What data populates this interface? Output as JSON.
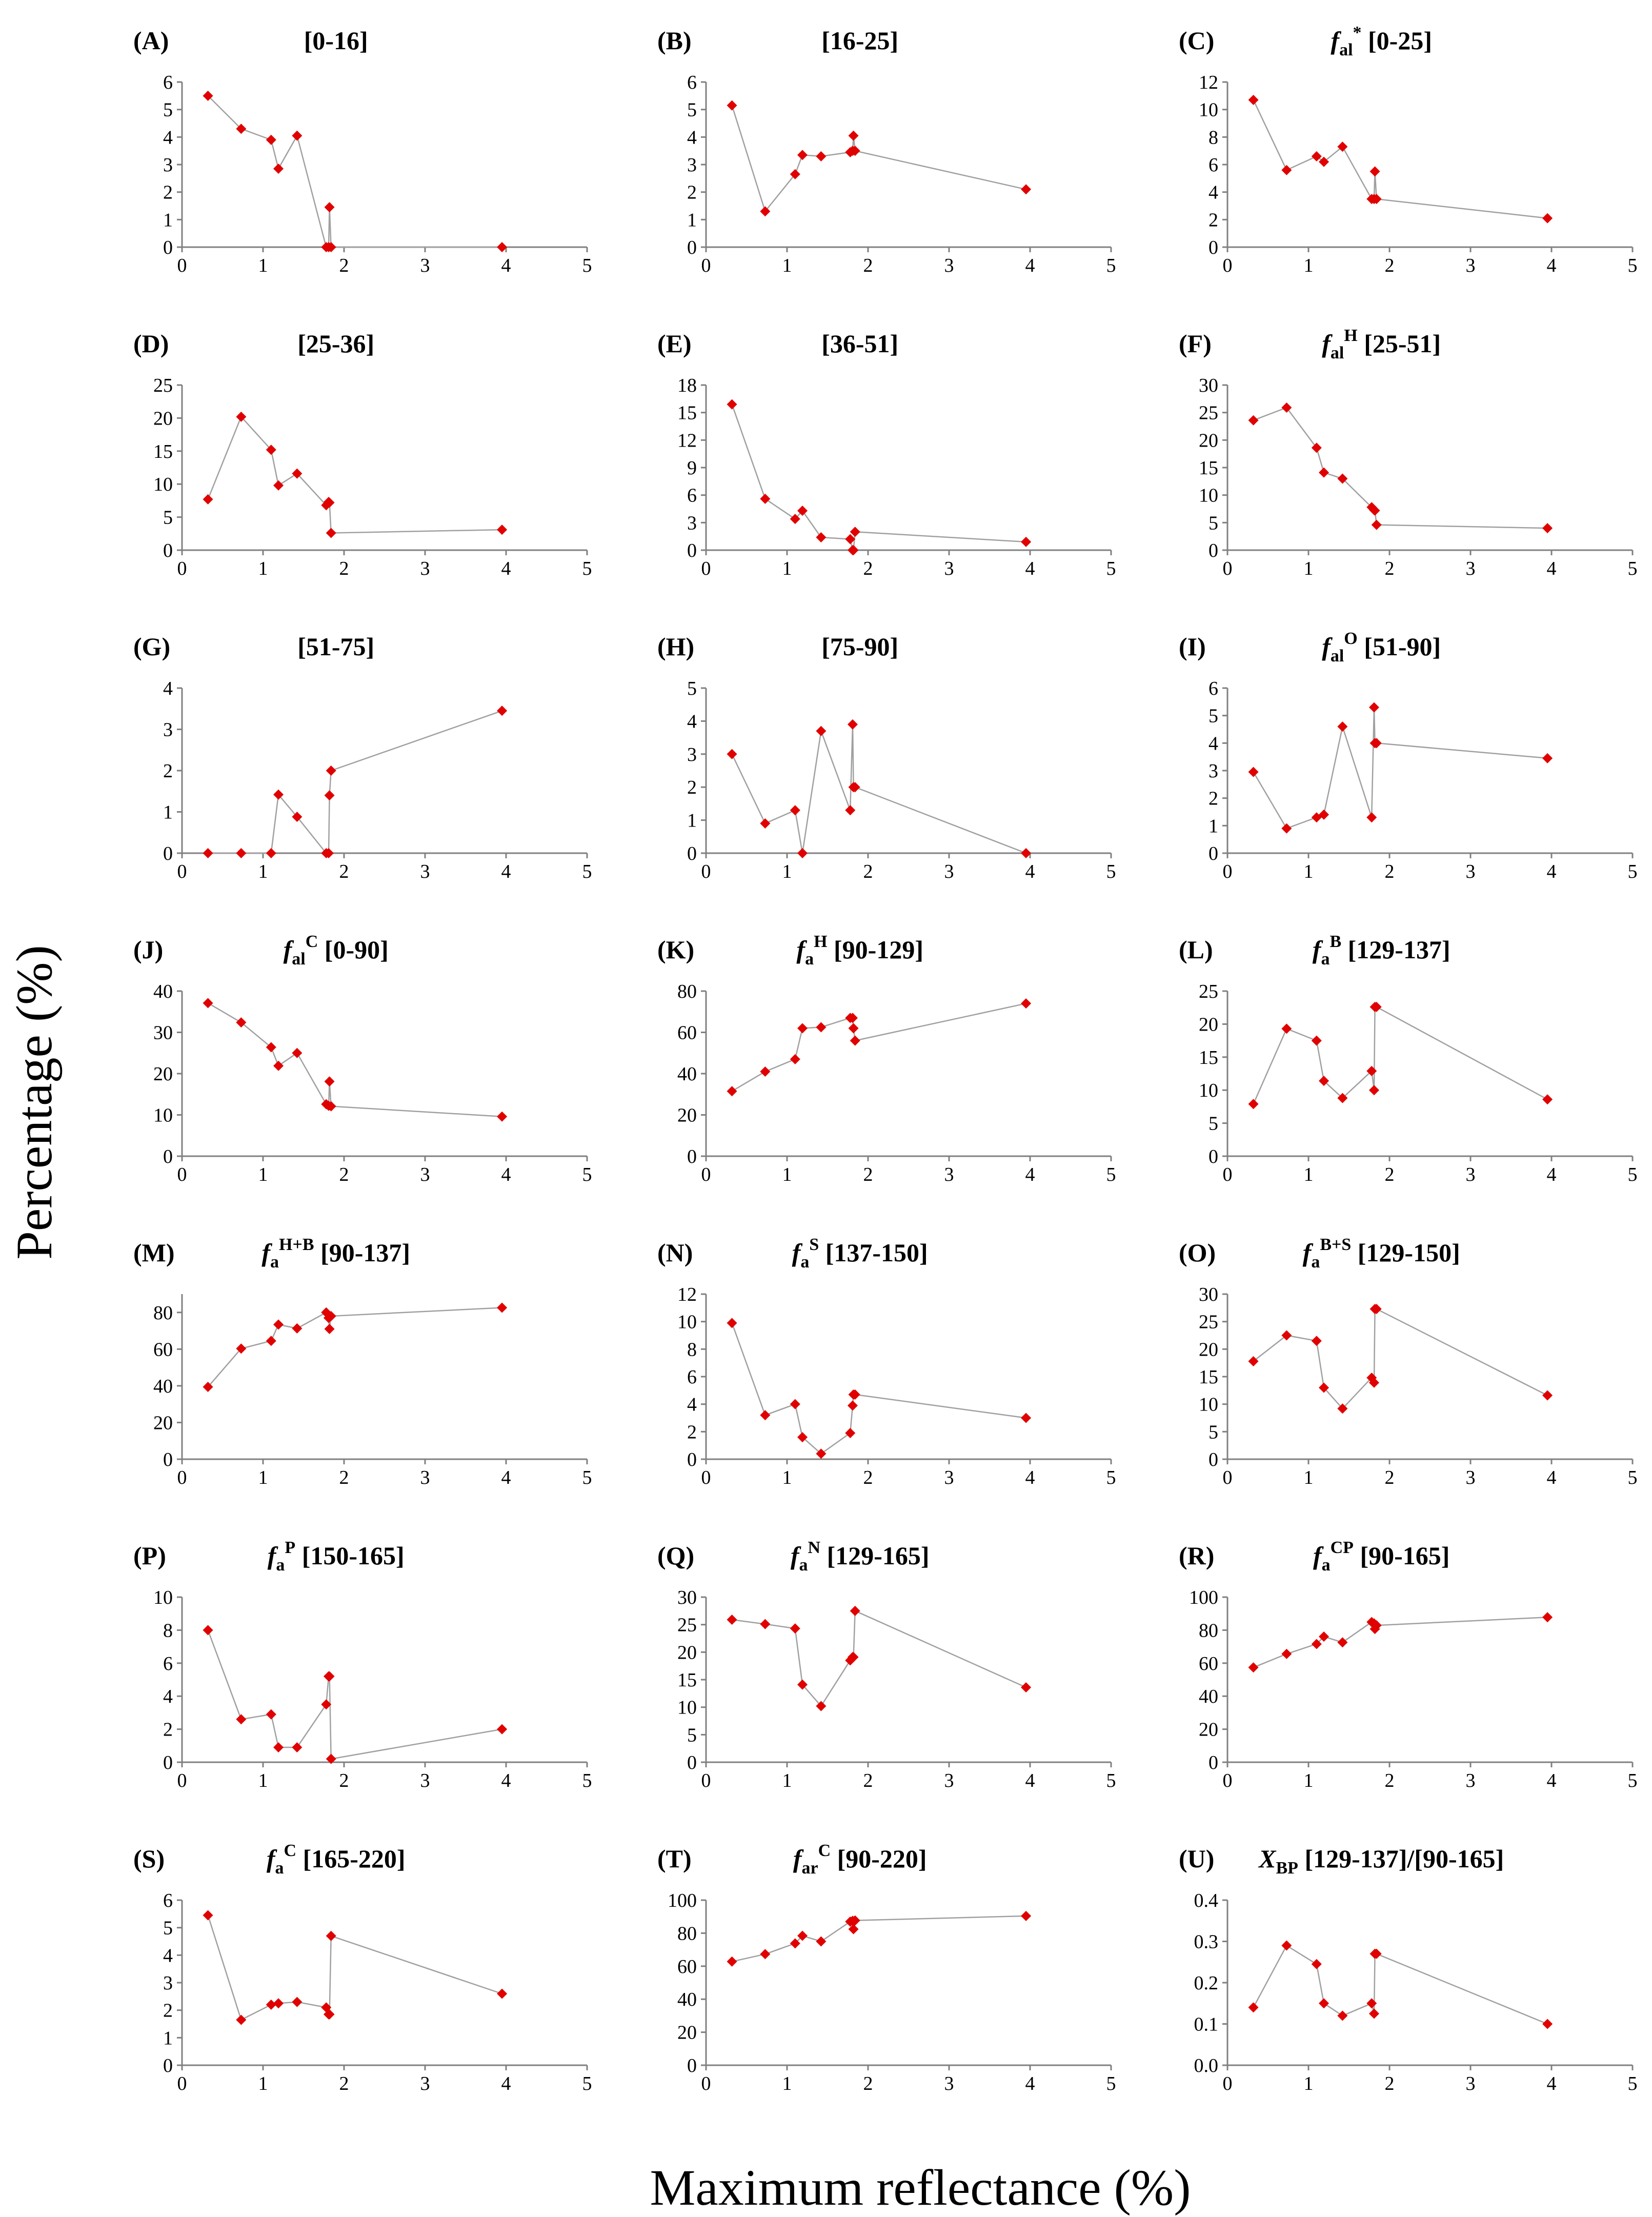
{
  "figure": {
    "ylabel": "Percentage (%)",
    "xlabel": "Maximum reflectance (%)"
  },
  "style": {
    "marker_color": "#e00000",
    "line_color": "#a0a0a0",
    "axis_color": "#808080"
  },
  "chart_data": [
    {
      "id": "A",
      "letter": "(A)",
      "title": "[0-16]",
      "type": "line",
      "xlim": [
        0,
        5
      ],
      "xticks": [
        0,
        1,
        2,
        3,
        4,
        5
      ],
      "ylim": [
        0,
        6
      ],
      "yticks": [
        0,
        1,
        2,
        3,
        4,
        5,
        6
      ],
      "grid": false,
      "x": [
        0.32,
        0.73,
        1.1,
        1.19,
        1.42,
        1.78,
        1.81,
        1.82,
        1.84,
        3.95
      ],
      "y": [
        5.5,
        4.3,
        3.9,
        2.85,
        4.05,
        0,
        0,
        1.45,
        0,
        0
      ]
    },
    {
      "id": "B",
      "letter": "(B)",
      "title": "[16-25]",
      "type": "line",
      "xlim": [
        0,
        5
      ],
      "xticks": [
        0,
        1,
        2,
        3,
        4,
        5
      ],
      "ylim": [
        0,
        6
      ],
      "yticks": [
        0,
        1,
        2,
        3,
        4,
        5,
        6
      ],
      "grid": false,
      "x": [
        0.32,
        0.73,
        1.1,
        1.19,
        1.42,
        1.78,
        1.81,
        1.82,
        1.84,
        3.95
      ],
      "y": [
        5.15,
        1.3,
        2.65,
        3.35,
        3.3,
        3.45,
        3.5,
        4.05,
        3.5,
        2.1
      ]
    },
    {
      "id": "C",
      "letter": "(C)",
      "title": "[0-25]",
      "title_sym": "f",
      "title_sub": "al",
      "title_sup": "*",
      "type": "line",
      "xlim": [
        0,
        5
      ],
      "xticks": [
        0,
        1,
        2,
        3,
        4,
        5
      ],
      "ylim": [
        0,
        12
      ],
      "yticks": [
        0,
        2,
        4,
        6,
        8,
        10,
        12
      ],
      "grid": false,
      "x": [
        0.32,
        0.73,
        1.1,
        1.19,
        1.42,
        1.78,
        1.81,
        1.82,
        1.84,
        3.95
      ],
      "y": [
        10.7,
        5.6,
        6.6,
        6.2,
        7.3,
        3.5,
        3.5,
        5.5,
        3.5,
        2.1
      ]
    },
    {
      "id": "D",
      "letter": "(D)",
      "title": "[25-36]",
      "type": "line",
      "xlim": [
        0,
        5
      ],
      "xticks": [
        0,
        1,
        2,
        3,
        4,
        5
      ],
      "ylim": [
        0,
        25
      ],
      "yticks": [
        0,
        5,
        10,
        15,
        20,
        25
      ],
      "grid": false,
      "x": [
        0.32,
        0.73,
        1.1,
        1.19,
        1.42,
        1.78,
        1.81,
        1.82,
        1.84,
        3.95
      ],
      "y": [
        7.7,
        20.2,
        15.2,
        9.8,
        11.6,
        6.8,
        7.3,
        7.2,
        2.6,
        3.1
      ]
    },
    {
      "id": "E",
      "letter": "(E)",
      "title": "[36-51]",
      "type": "line",
      "xlim": [
        0,
        5
      ],
      "xticks": [
        0,
        1,
        2,
        3,
        4,
        5
      ],
      "ylim": [
        0,
        18
      ],
      "yticks": [
        0,
        3,
        6,
        9,
        12,
        15,
        18
      ],
      "grid": false,
      "x": [
        0.32,
        0.73,
        1.1,
        1.19,
        1.42,
        1.78,
        1.81,
        1.82,
        1.84,
        3.95
      ],
      "y": [
        15.9,
        5.6,
        3.4,
        4.3,
        1.4,
        1.2,
        0,
        0,
        2.0,
        0.9
      ]
    },
    {
      "id": "F",
      "letter": "(F)",
      "title": "[25-51]",
      "title_sym": "f",
      "title_sub": "al",
      "title_sup": "H",
      "type": "line",
      "xlim": [
        0,
        5
      ],
      "xticks": [
        0,
        1,
        2,
        3,
        4,
        5
      ],
      "ylim": [
        0,
        30
      ],
      "yticks": [
        0,
        5,
        10,
        15,
        20,
        25,
        30
      ],
      "grid": false,
      "x": [
        0.32,
        0.73,
        1.1,
        1.19,
        1.42,
        1.78,
        1.81,
        1.82,
        1.84,
        3.95
      ],
      "y": [
        23.6,
        25.9,
        18.6,
        14.1,
        13.0,
        7.8,
        7.3,
        7.2,
        4.6,
        4.0
      ]
    },
    {
      "id": "G",
      "letter": "(G)",
      "title": "[51-75]",
      "type": "line",
      "xlim": [
        0,
        5
      ],
      "xticks": [
        0,
        1,
        2,
        3,
        4,
        5
      ],
      "ylim": [
        0,
        4
      ],
      "yticks": [
        0,
        1,
        2,
        3,
        4
      ],
      "grid": false,
      "x": [
        0.32,
        0.73,
        1.1,
        1.19,
        1.42,
        1.78,
        1.81,
        1.82,
        1.84,
        3.95
      ],
      "y": [
        0,
        0,
        0,
        1.42,
        0.88,
        0,
        0,
        1.4,
        2.0,
        3.45
      ]
    },
    {
      "id": "H",
      "letter": "(H)",
      "title": "[75-90]",
      "type": "line",
      "xlim": [
        0,
        5
      ],
      "xticks": [
        0,
        1,
        2,
        3,
        4,
        5
      ],
      "ylim": [
        0,
        5
      ],
      "yticks": [
        0,
        1,
        2,
        3,
        4,
        5
      ],
      "grid": false,
      "x": [
        0.32,
        0.73,
        1.1,
        1.19,
        1.42,
        1.78,
        1.81,
        1.82,
        1.84,
        3.95
      ],
      "y": [
        3.0,
        0.9,
        1.3,
        0,
        3.7,
        1.3,
        3.9,
        2.0,
        2.0,
        0
      ]
    },
    {
      "id": "I",
      "letter": "(I)",
      "title": "[51-90]",
      "title_sym": "f",
      "title_sub": "al",
      "title_sup": "O",
      "type": "line",
      "xlim": [
        0,
        5
      ],
      "xticks": [
        0,
        1,
        2,
        3,
        4,
        5
      ],
      "ylim": [
        0,
        6
      ],
      "yticks": [
        0,
        1,
        2,
        3,
        4,
        5,
        6
      ],
      "grid": false,
      "x": [
        0.32,
        0.73,
        1.1,
        1.19,
        1.42,
        1.78,
        1.81,
        1.82,
        1.84,
        3.95
      ],
      "y": [
        2.95,
        0.9,
        1.3,
        1.4,
        4.6,
        1.3,
        5.3,
        4.0,
        4.0,
        3.45
      ]
    },
    {
      "id": "J",
      "letter": "(J)",
      "title": "[0-90]",
      "title_sym": "f",
      "title_sub": "al",
      "title_sup": "C",
      "type": "line",
      "xlim": [
        0,
        5
      ],
      "xticks": [
        0,
        1,
        2,
        3,
        4,
        5
      ],
      "ylim": [
        0,
        40
      ],
      "yticks": [
        0,
        10,
        20,
        30,
        40
      ],
      "grid": false,
      "x": [
        0.32,
        0.73,
        1.1,
        1.19,
        1.42,
        1.78,
        1.81,
        1.82,
        1.84,
        3.95
      ],
      "y": [
        37.1,
        32.4,
        26.4,
        21.9,
        25.0,
        12.6,
        12.2,
        18.1,
        12.1,
        9.6
      ]
    },
    {
      "id": "K",
      "letter": "(K)",
      "title": "[90-129]",
      "title_sym": "f",
      "title_sub": "a",
      "title_sup": "H",
      "type": "line",
      "xlim": [
        0,
        5
      ],
      "xticks": [
        0,
        1,
        2,
        3,
        4,
        5
      ],
      "ylim": [
        0,
        80
      ],
      "yticks": [
        0,
        20,
        40,
        60,
        80
      ],
      "grid": false,
      "x": [
        0.32,
        0.73,
        1.1,
        1.19,
        1.42,
        1.78,
        1.81,
        1.82,
        1.84,
        3.95
      ],
      "y": [
        31.5,
        41.0,
        47.0,
        62.0,
        62.5,
        67.0,
        67.0,
        62.0,
        56.0,
        74.0
      ]
    },
    {
      "id": "L",
      "letter": "(L)",
      "title": "[129-137]",
      "title_sym": "f",
      "title_sub": "a",
      "title_sup": "B",
      "type": "line",
      "xlim": [
        0,
        5
      ],
      "xticks": [
        0,
        1,
        2,
        3,
        4,
        5
      ],
      "ylim": [
        0,
        25
      ],
      "yticks": [
        0,
        5,
        10,
        15,
        20,
        25
      ],
      "grid": false,
      "x": [
        0.32,
        0.73,
        1.1,
        1.19,
        1.42,
        1.78,
        1.81,
        1.82,
        1.84,
        3.95
      ],
      "y": [
        7.9,
        19.3,
        17.5,
        11.4,
        8.8,
        12.9,
        10.0,
        22.6,
        22.6,
        8.6
      ]
    },
    {
      "id": "M",
      "letter": "(M)",
      "title": "[90-137]",
      "title_sym": "f",
      "title_sub": "a",
      "title_sup": "H+B",
      "type": "line",
      "xlim": [
        0,
        5
      ],
      "xticks": [
        0,
        1,
        2,
        3,
        4,
        5
      ],
      "ylim": [
        0,
        90
      ],
      "yticks": [
        0,
        20,
        40,
        60,
        80
      ],
      "grid": false,
      "x": [
        0.32,
        0.73,
        1.1,
        1.19,
        1.42,
        1.78,
        1.81,
        1.82,
        1.84,
        3.95
      ],
      "y": [
        39.4,
        60.3,
        64.5,
        73.4,
        71.3,
        80.0,
        77.0,
        71.0,
        78.0,
        82.6
      ]
    },
    {
      "id": "N",
      "letter": "(N)",
      "title": "[137-150]",
      "title_sym": "f",
      "title_sub": "a",
      "title_sup": "S",
      "type": "line",
      "xlim": [
        0,
        5
      ],
      "xticks": [
        0,
        1,
        2,
        3,
        4,
        5
      ],
      "ylim": [
        0,
        12
      ],
      "yticks": [
        0,
        2,
        4,
        6,
        8,
        10,
        12
      ],
      "grid": false,
      "x": [
        0.32,
        0.73,
        1.1,
        1.19,
        1.42,
        1.78,
        1.81,
        1.82,
        1.84,
        3.95
      ],
      "y": [
        9.9,
        3.2,
        4.0,
        1.6,
        0.4,
        1.9,
        3.9,
        4.7,
        4.7,
        3.0
      ]
    },
    {
      "id": "O",
      "letter": "(O)",
      "title": "[129-150]",
      "title_sym": "f",
      "title_sub": "a",
      "title_sup": "B+S",
      "type": "line",
      "xlim": [
        0,
        5
      ],
      "xticks": [
        0,
        1,
        2,
        3,
        4,
        5
      ],
      "ylim": [
        0,
        30
      ],
      "yticks": [
        0,
        5,
        10,
        15,
        20,
        25,
        30
      ],
      "grid": false,
      "x": [
        0.32,
        0.73,
        1.1,
        1.19,
        1.42,
        1.78,
        1.81,
        1.82,
        1.84,
        3.95
      ],
      "y": [
        17.8,
        22.5,
        21.5,
        13.0,
        9.2,
        14.8,
        13.9,
        27.3,
        27.3,
        11.6
      ]
    },
    {
      "id": "P",
      "letter": "(P)",
      "title": "[150-165]",
      "title_sym": "f",
      "title_sub": "a",
      "title_sup": "P",
      "type": "line",
      "xlim": [
        0,
        5
      ],
      "xticks": [
        0,
        1,
        2,
        3,
        4,
        5
      ],
      "ylim": [
        0,
        10
      ],
      "yticks": [
        0,
        2,
        4,
        6,
        8,
        10
      ],
      "grid": false,
      "x": [
        0.32,
        0.73,
        1.1,
        1.19,
        1.42,
        1.78,
        1.81,
        1.82,
        1.84,
        3.95
      ],
      "y": [
        8.0,
        2.6,
        2.9,
        0.9,
        0.9,
        3.5,
        5.2,
        5.2,
        0.2,
        2.0
      ]
    },
    {
      "id": "Q",
      "letter": "(Q)",
      "title": "[129-165]",
      "title_sym": "f",
      "title_sub": "a",
      "title_sup": "N",
      "type": "line",
      "xlim": [
        0,
        5
      ],
      "xticks": [
        0,
        1,
        2,
        3,
        4,
        5
      ],
      "ylim": [
        0,
        30
      ],
      "yticks": [
        0,
        5,
        10,
        15,
        20,
        25,
        30
      ],
      "grid": false,
      "x": [
        0.32,
        0.73,
        1.1,
        1.19,
        1.42,
        1.78,
        1.81,
        1.82,
        1.84,
        3.95
      ],
      "y": [
        25.9,
        25.1,
        24.3,
        14.1,
        10.2,
        18.5,
        19.1,
        19.1,
        27.5,
        13.6
      ]
    },
    {
      "id": "R",
      "letter": "(R)",
      "title": "[90-165]",
      "title_sym": "f",
      "title_sub": "a",
      "title_sup": "CP",
      "type": "line",
      "xlim": [
        0,
        5
      ],
      "xticks": [
        0,
        1,
        2,
        3,
        4,
        5
      ],
      "ylim": [
        0,
        100
      ],
      "yticks": [
        0,
        20,
        40,
        60,
        80,
        100
      ],
      "grid": false,
      "x": [
        0.32,
        0.73,
        1.1,
        1.19,
        1.42,
        1.78,
        1.81,
        1.82,
        1.84,
        3.95
      ],
      "y": [
        57.4,
        65.6,
        71.6,
        76.1,
        72.6,
        84.9,
        84.1,
        80.7,
        82.9,
        87.8
      ]
    },
    {
      "id": "S",
      "letter": "(S)",
      "title": "[165-220]",
      "title_sym": "f",
      "title_sub": "a",
      "title_sup": "C",
      "type": "line",
      "xlim": [
        0,
        5
      ],
      "xticks": [
        0,
        1,
        2,
        3,
        4,
        5
      ],
      "ylim": [
        0,
        6
      ],
      "yticks": [
        0,
        1,
        2,
        3,
        4,
        5,
        6
      ],
      "grid": false,
      "x": [
        0.32,
        0.73,
        1.1,
        1.19,
        1.42,
        1.78,
        1.81,
        1.82,
        1.84,
        3.95
      ],
      "y": [
        5.45,
        1.65,
        2.2,
        2.25,
        2.3,
        2.1,
        1.85,
        1.85,
        4.7,
        2.6
      ]
    },
    {
      "id": "T",
      "letter": "(T)",
      "title": "[90-220]",
      "title_sym": "f",
      "title_sub": "ar",
      "title_sup": "C",
      "type": "line",
      "xlim": [
        0,
        5
      ],
      "xticks": [
        0,
        1,
        2,
        3,
        4,
        5
      ],
      "ylim": [
        0,
        100
      ],
      "yticks": [
        0,
        20,
        40,
        60,
        80,
        100
      ],
      "grid": false,
      "x": [
        0.32,
        0.73,
        1.1,
        1.19,
        1.42,
        1.78,
        1.81,
        1.82,
        1.84,
        3.95
      ],
      "y": [
        62.8,
        67.3,
        73.8,
        78.4,
        75.0,
        87.0,
        87.5,
        82.4,
        87.7,
        90.4
      ]
    },
    {
      "id": "U",
      "letter": "(U)",
      "title": "[129-137]/[90-165]",
      "title_sym": "X",
      "title_sub": "BP",
      "type": "line",
      "xlim": [
        0,
        5
      ],
      "xticks": [
        0,
        1,
        2,
        3,
        4,
        5
      ],
      "ylim": [
        0,
        0.4
      ],
      "yticks": [
        0.0,
        0.1,
        0.2,
        0.3,
        0.4
      ],
      "ytick_decimals": 1,
      "grid": false,
      "x": [
        0.32,
        0.73,
        1.1,
        1.19,
        1.42,
        1.78,
        1.81,
        1.82,
        1.84,
        3.95
      ],
      "y": [
        0.14,
        0.29,
        0.245,
        0.15,
        0.12,
        0.15,
        0.125,
        0.27,
        0.27,
        0.1
      ]
    }
  ]
}
